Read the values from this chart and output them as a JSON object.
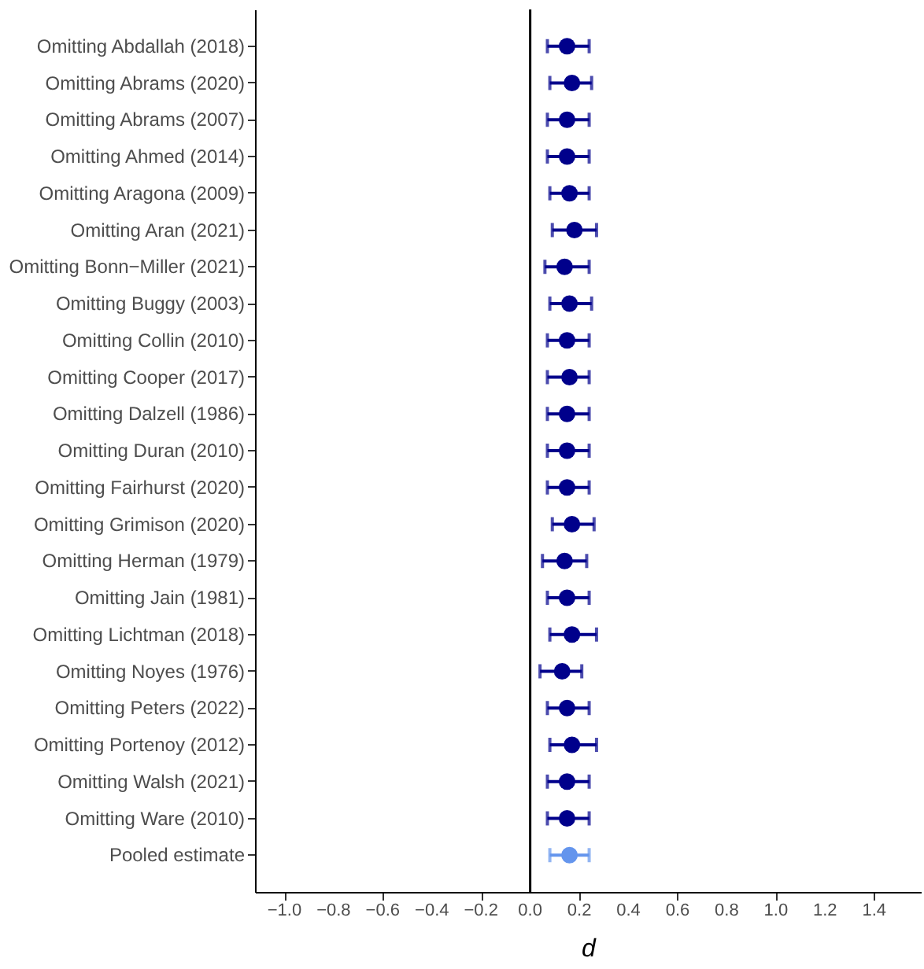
{
  "chart_data": {
    "type": "scatter",
    "orientation": "horizontal",
    "xlabel": "d",
    "categories": [
      "Omitting Abdallah (2018)",
      "Omitting Abrams (2020)",
      "Omitting Abrams (2007)",
      "Omitting Ahmed (2014)",
      "Omitting Aragona (2009)",
      "Omitting Aran (2021)",
      "Omitting Bonn−Miller (2021)",
      "Omitting Buggy (2003)",
      "Omitting Collin (2010)",
      "Omitting Cooper (2017)",
      "Omitting Dalzell (1986)",
      "Omitting Duran (2010)",
      "Omitting Fairhurst (2020)",
      "Omitting Grimison (2020)",
      "Omitting Herman (1979)",
      "Omitting Jain (1981)",
      "Omitting Lichtman (2018)",
      "Omitting Noyes (1976)",
      "Omitting Peters (2022)",
      "Omitting Portenoy (2012)",
      "Omitting Walsh (2021)",
      "Omitting Ware (2010)",
      "Pooled estimate"
    ],
    "values": [
      0.15,
      0.17,
      0.15,
      0.15,
      0.16,
      0.18,
      0.14,
      0.16,
      0.15,
      0.16,
      0.15,
      0.15,
      0.15,
      0.17,
      0.14,
      0.15,
      0.17,
      0.13,
      0.15,
      0.17,
      0.15,
      0.15,
      0.16
    ],
    "errors": [
      [
        0.07,
        0.24
      ],
      [
        0.08,
        0.25
      ],
      [
        0.07,
        0.24
      ],
      [
        0.07,
        0.24
      ],
      [
        0.08,
        0.24
      ],
      [
        0.09,
        0.27
      ],
      [
        0.06,
        0.24
      ],
      [
        0.08,
        0.25
      ],
      [
        0.07,
        0.24
      ],
      [
        0.07,
        0.24
      ],
      [
        0.07,
        0.24
      ],
      [
        0.07,
        0.24
      ],
      [
        0.07,
        0.24
      ],
      [
        0.09,
        0.26
      ],
      [
        0.05,
        0.23
      ],
      [
        0.07,
        0.24
      ],
      [
        0.08,
        0.27
      ],
      [
        0.04,
        0.21
      ],
      [
        0.07,
        0.24
      ],
      [
        0.08,
        0.27
      ],
      [
        0.07,
        0.24
      ],
      [
        0.07,
        0.24
      ],
      [
        0.08,
        0.24
      ]
    ],
    "colors": [
      "#00008b",
      "#00008b",
      "#00008b",
      "#00008b",
      "#00008b",
      "#00008b",
      "#00008b",
      "#00008b",
      "#00008b",
      "#00008b",
      "#00008b",
      "#00008b",
      "#00008b",
      "#00008b",
      "#00008b",
      "#00008b",
      "#00008b",
      "#00008b",
      "#00008b",
      "#00008b",
      "#00008b",
      "#00008b",
      "#6495ed"
    ],
    "xlim": [
      -1.12,
      1.59
    ],
    "xticks": [
      {
        "value": -1.0,
        "label": "−1.0"
      },
      {
        "value": -0.8,
        "label": "−0.8"
      },
      {
        "value": -0.6,
        "label": "−0.6"
      },
      {
        "value": -0.4,
        "label": "−0.4"
      },
      {
        "value": -0.2,
        "label": "−0.2"
      },
      {
        "value": 0.0,
        "label": "0.0"
      },
      {
        "value": 0.2,
        "label": "0.2"
      },
      {
        "value": 0.4,
        "label": "0.4"
      },
      {
        "value": 0.6,
        "label": "0.6"
      },
      {
        "value": 0.8,
        "label": "0.8"
      },
      {
        "value": 1.0,
        "label": "1.0"
      },
      {
        "value": 1.2,
        "label": "1.2"
      },
      {
        "value": 1.4,
        "label": "1.4"
      }
    ],
    "ref_lines": [
      {
        "axis": "x",
        "value": 0,
        "color": "#000000"
      }
    ],
    "grid": false,
    "legend": false,
    "marker": "circle"
  }
}
